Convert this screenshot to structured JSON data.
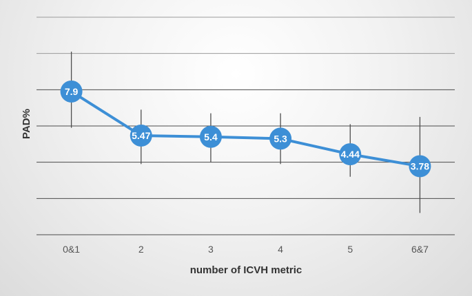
{
  "chart_data": {
    "type": "line",
    "title": "",
    "xlabel": "number of ICVH metric",
    "ylabel": "PAD%",
    "categories": [
      "0&1",
      "2",
      "3",
      "4",
      "5",
      "6&7"
    ],
    "series": [
      {
        "values": [
          7.9,
          5.47,
          5.4,
          5.3,
          4.44,
          3.78
        ],
        "labels": [
          "7.9",
          "5.47",
          "5.4",
          "5.3",
          "4.44",
          "3.78"
        ],
        "error_low": [
          5.9,
          3.9,
          4.0,
          3.9,
          3.2,
          1.2
        ],
        "error_high": [
          10.1,
          6.9,
          6.7,
          6.7,
          6.1,
          6.5
        ],
        "color": "#3d8fd6"
      }
    ],
    "ylim": [
      0,
      12
    ],
    "grid": true,
    "gridline_step": 2,
    "legend": "none"
  }
}
